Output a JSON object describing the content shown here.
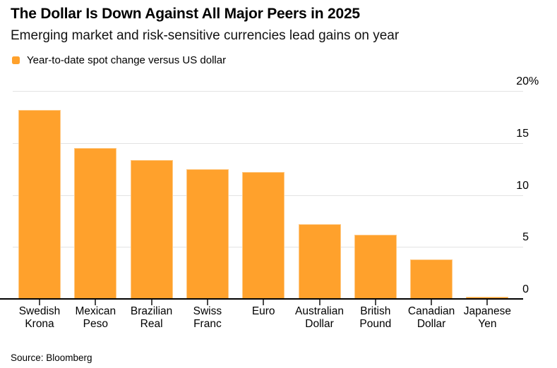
{
  "header": {
    "title": "The Dollar Is Down Against All Major Peers in 2025",
    "subtitle": "Emerging market and risk-sensitive currencies lead gains on year"
  },
  "legend": {
    "label": "Year-to-date spot change versus US dollar",
    "swatch_color": "#FFA12C"
  },
  "footer": {
    "source": "Source: Bloomberg"
  },
  "colors": {
    "bar": "#FFA12C",
    "gridline": "#E3E3E3",
    "baseline": "#000000",
    "tick": "#4A4A4A"
  },
  "chart_data": {
    "type": "bar",
    "title": "The Dollar Is Down Against All Major Peers in 2025",
    "subtitle": "Emerging market and risk-sensitive currencies lead gains on year",
    "legend_entries": [
      "Year-to-date spot change versus US dollar"
    ],
    "legend_position": "top-left",
    "categories": [
      "Swedish Krona",
      "Mexican Peso",
      "Brazilian Real",
      "Swiss Franc",
      "Euro",
      "Australian Dollar",
      "British Pound",
      "Canadian Dollar",
      "Japanese Yen"
    ],
    "values": [
      18.2,
      14.5,
      13.4,
      12.5,
      12.2,
      7.2,
      6.2,
      3.8,
      0.2
    ],
    "xlabel": "",
    "ylabel": "",
    "ylim": [
      0,
      20
    ],
    "yticks": [
      0,
      5,
      10,
      15,
      20
    ],
    "ytick_top_suffix": "%",
    "yaxis_side": "right",
    "grid": "horizontal",
    "bar_color": "#FFA12C",
    "source": "Source: Bloomberg"
  }
}
